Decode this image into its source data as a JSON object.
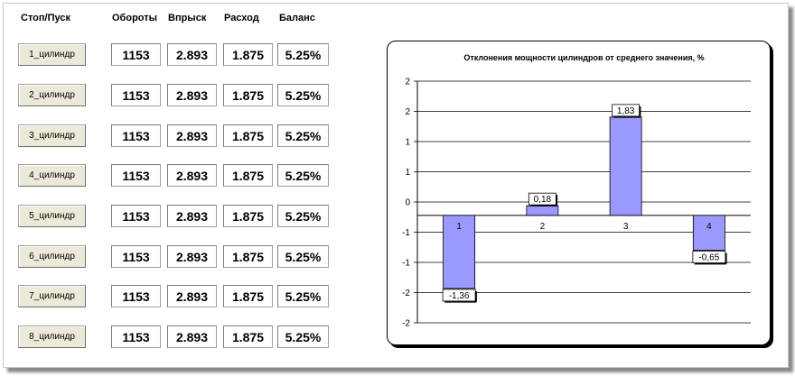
{
  "headers": {
    "start_stop": "Стоп/Пуск",
    "rpm": "Обороты",
    "injection": "Впрыск",
    "flow": "Расход",
    "balance": "Баланс"
  },
  "rows": [
    {
      "button": "1_цилиндр",
      "rpm": "1153",
      "injection": "2.893",
      "flow": "1.875",
      "balance": "5.25%"
    },
    {
      "button": "2_цилиндр",
      "rpm": "1153",
      "injection": "2.893",
      "flow": "1.875",
      "balance": "5.25%"
    },
    {
      "button": "3_цилиндр",
      "rpm": "1153",
      "injection": "2.893",
      "flow": "1.875",
      "balance": "5.25%"
    },
    {
      "button": "4_цилиндр",
      "rpm": "1153",
      "injection": "2.893",
      "flow": "1.875",
      "balance": "5.25%"
    },
    {
      "button": "5_цилиндр",
      "rpm": "1153",
      "injection": "2.893",
      "flow": "1.875",
      "balance": "5.25%"
    },
    {
      "button": "6_цилиндр",
      "rpm": "1153",
      "injection": "2.893",
      "flow": "1.875",
      "balance": "5.25%"
    },
    {
      "button": "7_цилиндр",
      "rpm": "1153",
      "injection": "2.893",
      "flow": "1.875",
      "balance": "5.25%"
    },
    {
      "button": "8_цилиндр",
      "rpm": "1153",
      "injection": "2.893",
      "flow": "1.875",
      "balance": "5.25%"
    }
  ],
  "chart_data": {
    "type": "bar",
    "title": "Отклонения мощности цилиндров от среднего значения, %",
    "categories": [
      "1",
      "2",
      "3",
      "4"
    ],
    "values": [
      -1.36,
      0.18,
      1.83,
      -0.65
    ],
    "value_labels": [
      "-1,36",
      "0,18",
      "1,83",
      "-0,65"
    ],
    "ylim": [
      -2,
      2.5
    ],
    "ytick_labels": [
      "2",
      "2",
      "1",
      "1",
      "0",
      "-1",
      "-1",
      "-2",
      "-2"
    ],
    "grid": true,
    "bar_color": "#9999ff"
  }
}
